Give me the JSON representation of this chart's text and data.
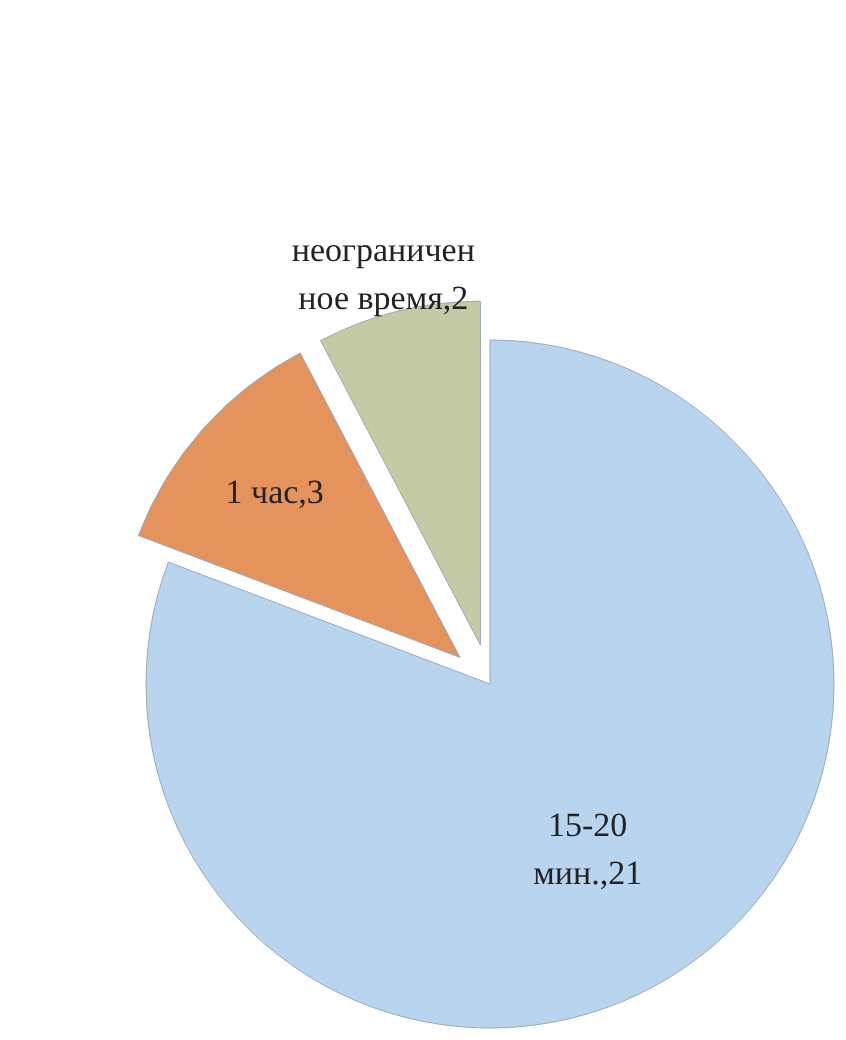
{
  "chart_data": {
    "type": "pie",
    "values": [
      21,
      3,
      2
    ],
    "value_labels": [
      "15-20 мин.,21",
      "1 час,3",
      "неограниченное время,2"
    ],
    "colors": [
      "#b9d4ee",
      "#e4935c",
      "#c4caa3"
    ]
  }
}
